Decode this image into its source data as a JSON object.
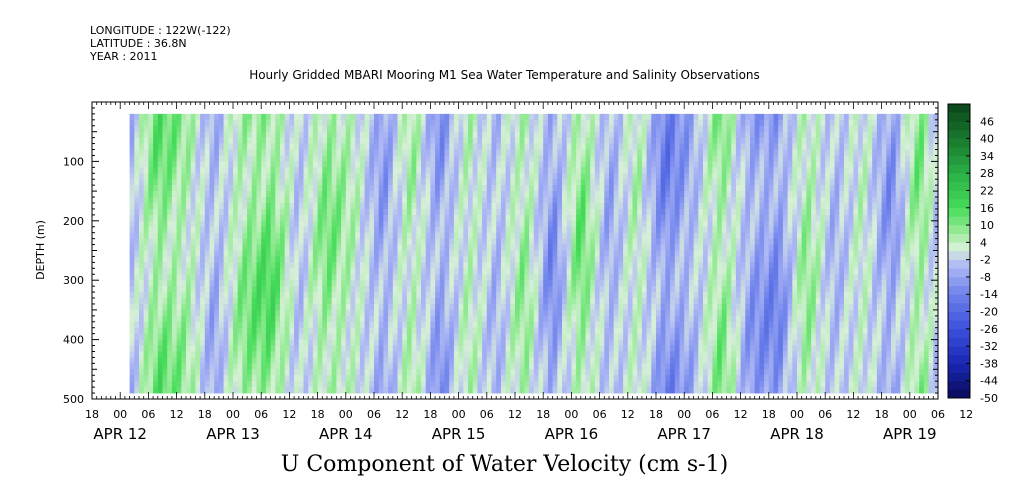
{
  "header": {
    "longitude": "LONGITUDE : 122W(-122)",
    "latitude": "LATITUDE : 36.8N",
    "year": "YEAR : 2011"
  },
  "chart_data": {
    "type": "heatmap",
    "title": "Hourly Gridded MBARI Mooring M1 Sea Water Temperature and Salinity Observations",
    "xlabel": "U Component of Water Velocity (cm s-1)",
    "ylabel": "DEPTH (m)",
    "x_range_hours": [
      -6,
      174
    ],
    "x_start_label": "APR 12 18",
    "ylim": [
      500,
      0
    ],
    "y_ticks": [
      100,
      200,
      300,
      400,
      500
    ],
    "x_hour_ticks": [
      "18",
      "00",
      "06",
      "12",
      "18",
      "00",
      "06",
      "12",
      "18",
      "00",
      "06",
      "12",
      "18",
      "00",
      "06",
      "12",
      "18",
      "00",
      "06",
      "12",
      "18",
      "00",
      "06",
      "12",
      "18",
      "00",
      "06",
      "12",
      "18",
      "00",
      "06",
      "12"
    ],
    "x_date_labels": [
      {
        "label": "APR 12",
        "hour": 0
      },
      {
        "label": "APR 13",
        "hour": 24
      },
      {
        "label": "APR 14",
        "hour": 48
      },
      {
        "label": "APR 15",
        "hour": 72
      },
      {
        "label": "APR 16",
        "hour": 96
      },
      {
        "label": "APR 17",
        "hour": 120
      },
      {
        "label": "APR 18",
        "hour": 144
      },
      {
        "label": "APR 19",
        "hour": 168
      }
    ],
    "data_extent": {
      "hour_start": 2,
      "hour_end": 174,
      "depth_top": 20,
      "depth_bottom": 490
    },
    "colorbar": {
      "levels": [
        46,
        40,
        34,
        28,
        22,
        16,
        10,
        4,
        -2,
        -8,
        -14,
        -20,
        -26,
        -32,
        -38,
        -44,
        -50
      ],
      "min": -50,
      "max": 52
    },
    "dominant_pattern": [
      {
        "hour": 2,
        "value": -6
      },
      {
        "hour": 8,
        "value": 14
      },
      {
        "hour": 14,
        "value": 8
      },
      {
        "hour": 20,
        "value": -8
      },
      {
        "hour": 26,
        "value": 10
      },
      {
        "hour": 32,
        "value": 16
      },
      {
        "hour": 38,
        "value": -4
      },
      {
        "hour": 44,
        "value": 12
      },
      {
        "hour": 50,
        "value": 4
      },
      {
        "hour": 56,
        "value": -10
      },
      {
        "hour": 62,
        "value": 8
      },
      {
        "hour": 68,
        "value": -12
      },
      {
        "hour": 74,
        "value": 6
      },
      {
        "hour": 80,
        "value": -6
      },
      {
        "hour": 86,
        "value": 10
      },
      {
        "hour": 92,
        "value": -14
      },
      {
        "hour": 98,
        "value": 14
      },
      {
        "hour": 104,
        "value": -8
      },
      {
        "hour": 110,
        "value": 6
      },
      {
        "hour": 116,
        "value": -16
      },
      {
        "hour": 122,
        "value": -6
      },
      {
        "hour": 128,
        "value": 12
      },
      {
        "hour": 134,
        "value": -10
      },
      {
        "hour": 140,
        "value": -14
      },
      {
        "hour": 146,
        "value": 10
      },
      {
        "hour": 152,
        "value": -6
      },
      {
        "hour": 158,
        "value": 4
      },
      {
        "hour": 164,
        "value": -12
      },
      {
        "hour": 170,
        "value": 12
      },
      {
        "hour": 174,
        "value": -4
      }
    ]
  }
}
